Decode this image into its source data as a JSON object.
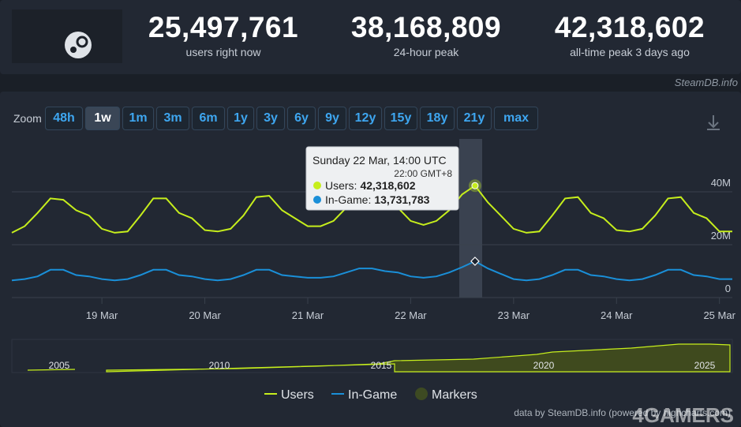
{
  "header": {
    "stats": [
      {
        "value": "25,497,761",
        "label": "users right now"
      },
      {
        "value": "38,168,809",
        "label": "24-hour peak"
      },
      {
        "value": "42,318,602",
        "label": "all-time peak 3 days ago"
      }
    ],
    "source": "SteamDB.info"
  },
  "zoom": {
    "label": "Zoom",
    "buttons": [
      "48h",
      "1w",
      "1m",
      "3m",
      "6m",
      "1y",
      "3y",
      "6y",
      "9y",
      "12y",
      "15y",
      "18y",
      "21y",
      "max"
    ],
    "active": "1w"
  },
  "chart_data": {
    "type": "line",
    "categories": [
      null,
      null,
      null,
      null,
      null,
      null,
      null,
      "19 Mar",
      null,
      null,
      null,
      null,
      null,
      null,
      null,
      "20 Mar",
      null,
      null,
      null,
      null,
      null,
      null,
      null,
      "21 Mar",
      null,
      null,
      null,
      null,
      null,
      null,
      null,
      "22 Mar",
      null,
      null,
      null,
      null,
      null,
      null,
      null,
      "23 Mar",
      null,
      null,
      null,
      null,
      null,
      null,
      null,
      "24 Mar",
      null,
      null,
      null,
      null,
      null,
      null,
      null,
      "25 Mar",
      null
    ],
    "series": [
      {
        "name": "Users",
        "color": "#c6ee1c",
        "values": [
          24.5,
          27,
          32,
          37.5,
          37,
          33,
          31,
          26,
          24.5,
          25,
          31,
          37.5,
          37.5,
          32,
          30,
          25.5,
          25,
          26,
          31,
          38,
          38.5,
          33,
          30,
          27,
          27,
          29,
          34,
          39,
          38,
          35,
          34,
          29,
          27.5,
          29,
          33,
          39,
          42.318602,
          36,
          31,
          26,
          24.5,
          25,
          31,
          37.5,
          38,
          32,
          30,
          25.5,
          25,
          26,
          31,
          37.5,
          38,
          32,
          30,
          25,
          25
        ]
      },
      {
        "name": "In-Game",
        "color": "#1a8fd8",
        "values": [
          6.5,
          7,
          8,
          10.5,
          10.5,
          8.5,
          8,
          7,
          6.5,
          7,
          8.5,
          10.5,
          10.5,
          8.5,
          8,
          7,
          6.5,
          7,
          8.5,
          10.5,
          10.5,
          8.5,
          8,
          7.5,
          7.5,
          8,
          9.5,
          11,
          11,
          10,
          9.5,
          8,
          7.5,
          8,
          9.5,
          11.5,
          13.731783,
          11,
          9,
          7,
          6.5,
          7,
          8.5,
          10.5,
          10.5,
          8.5,
          8,
          7,
          6.5,
          7,
          8.5,
          10.5,
          10.5,
          8.5,
          8,
          7,
          7
        ]
      }
    ],
    "legend_extra": "Markers",
    "ylim": [
      0,
      60
    ],
    "yticks": [
      0,
      {
        "value": 20,
        "label": "20M"
      },
      {
        "value": 40,
        "label": "40M"
      }
    ],
    "grid": true,
    "tooltip": {
      "title": "Sunday 22 Mar, 14:00 UTC",
      "local": "22:00 GMT+8",
      "users_label": "Users:",
      "users_value": "42,318,602",
      "ingame_label": "In-Game:",
      "ingame_value": "13,731,783"
    },
    "navigator": [
      "2005",
      "2010",
      "2015",
      "2020",
      "2025"
    ],
    "credit": "data by SteamDB.info (powered by highcharts.com)"
  },
  "watermark": "4GAMERS"
}
